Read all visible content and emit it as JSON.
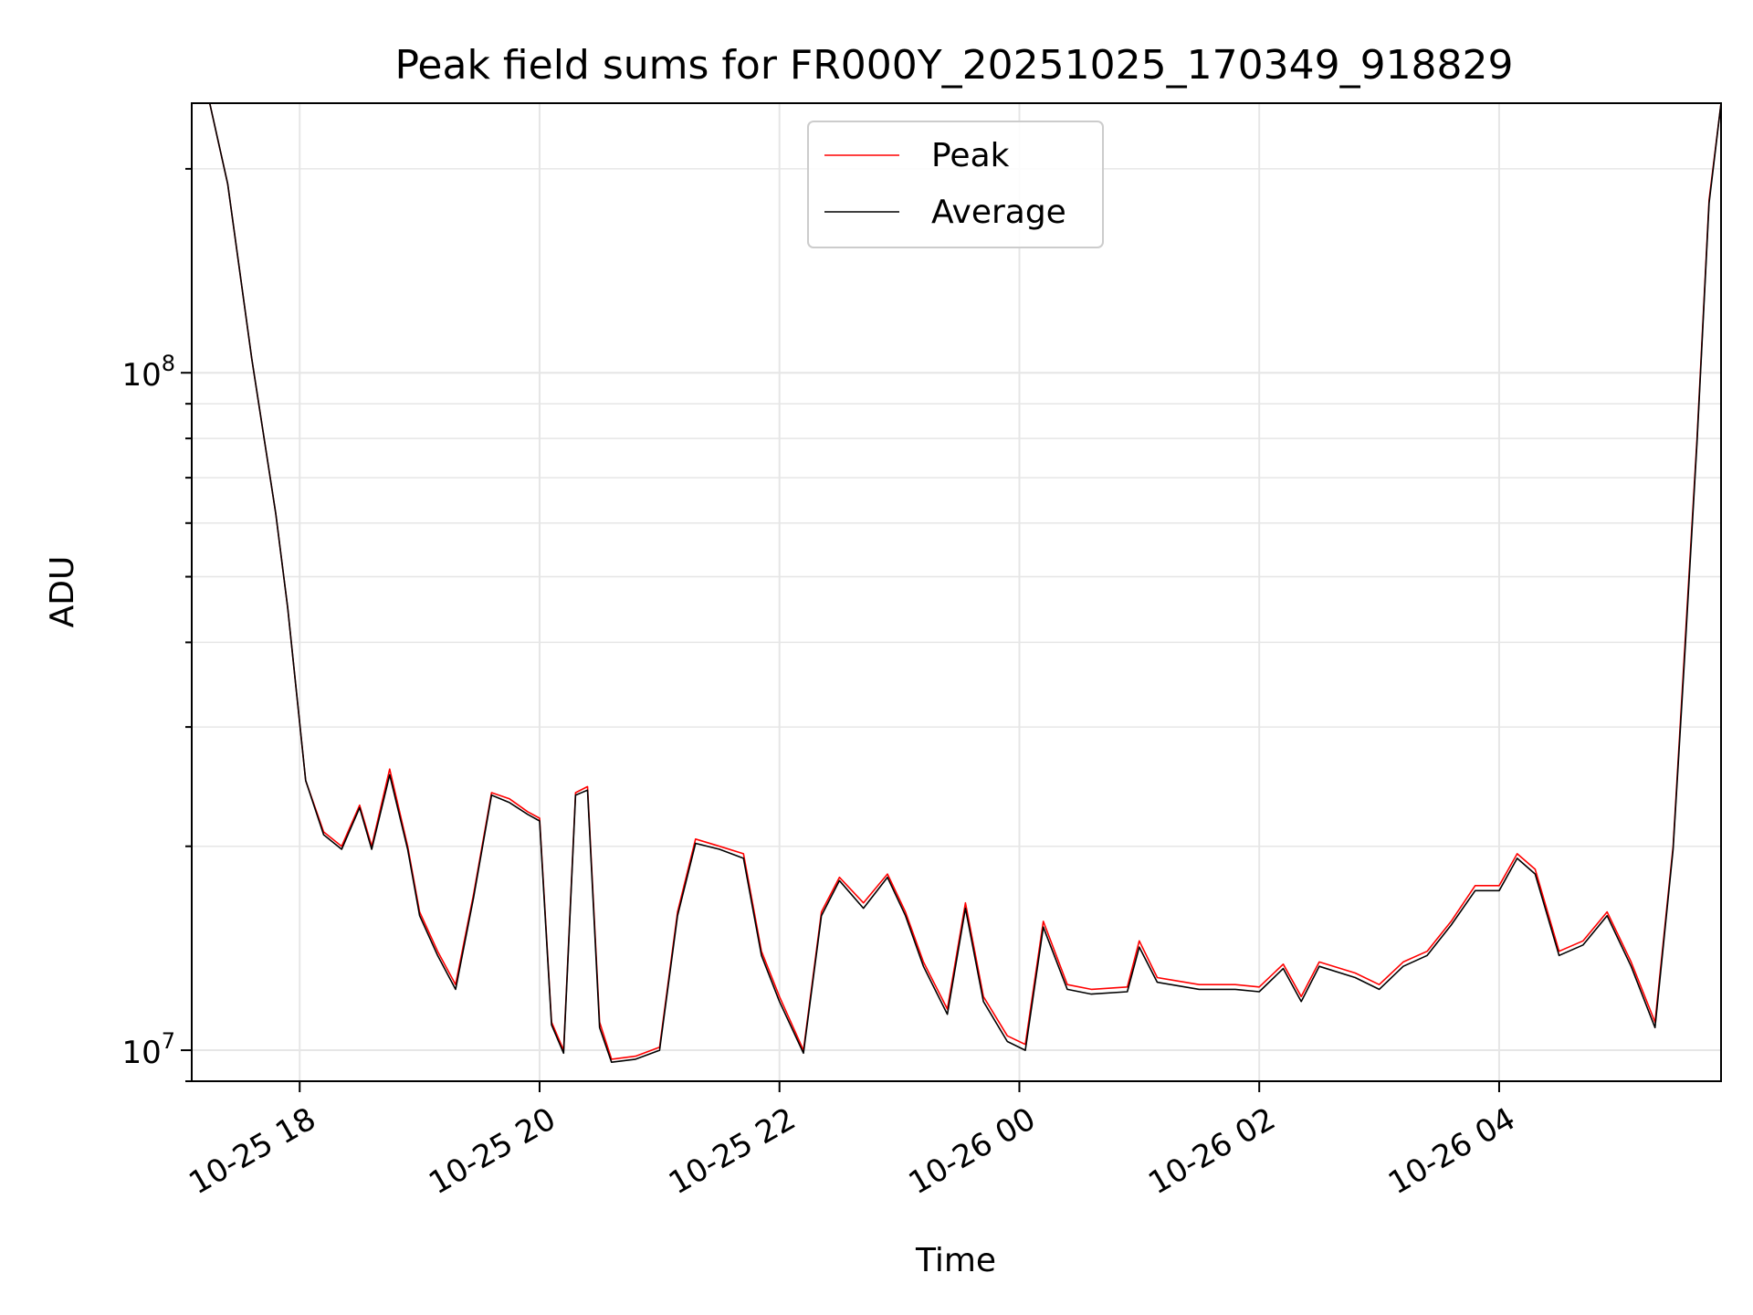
{
  "chart_data": {
    "type": "line",
    "title": "Peak field sums for FR000Y_20251025_170349_918829",
    "xlabel": "Time",
    "ylabel": "ADU",
    "yscale": "log",
    "ylim": [
      9000000,
      250000000
    ],
    "xlim_hours": [
      17.1,
      29.85
    ],
    "grid": true,
    "legend_position": "top-center",
    "x_ticks": [
      {
        "hour": 18,
        "label": "10-25 18"
      },
      {
        "hour": 20,
        "label": "10-25 20"
      },
      {
        "hour": 22,
        "label": "10-25 22"
      },
      {
        "hour": 24,
        "label": "10-26 00"
      },
      {
        "hour": 26,
        "label": "10-26 02"
      },
      {
        "hour": 28,
        "label": "10-26 04"
      }
    ],
    "y_major_ticks": [
      {
        "value": 10000000,
        "label_base": "10",
        "label_exp": "7"
      },
      {
        "value": 100000000,
        "label_base": "10",
        "label_exp": "8"
      }
    ],
    "series": [
      {
        "name": "Peak",
        "color": "#ff0000",
        "points_hour_adu": [
          [
            17.25,
            250000000
          ],
          [
            17.4,
            190000000
          ],
          [
            17.6,
            105000000
          ],
          [
            17.8,
            62000000
          ],
          [
            17.9,
            45000000
          ],
          [
            18.05,
            25000000
          ],
          [
            18.2,
            21000000
          ],
          [
            18.35,
            20000000
          ],
          [
            18.5,
            23000000
          ],
          [
            18.6,
            20000000
          ],
          [
            18.75,
            26000000
          ],
          [
            18.9,
            20000000
          ],
          [
            19.0,
            16000000
          ],
          [
            19.15,
            14000000
          ],
          [
            19.3,
            12500000
          ],
          [
            19.45,
            17000000
          ],
          [
            19.6,
            24000000
          ],
          [
            19.75,
            23500000
          ],
          [
            19.9,
            22500000
          ],
          [
            20.0,
            22000000
          ],
          [
            20.1,
            11000000
          ],
          [
            20.2,
            10000000
          ],
          [
            20.3,
            24000000
          ],
          [
            20.4,
            24500000
          ],
          [
            20.5,
            11000000
          ],
          [
            20.6,
            9700000
          ],
          [
            20.8,
            9800000
          ],
          [
            21.0,
            10100000
          ],
          [
            21.15,
            16000000
          ],
          [
            21.3,
            20500000
          ],
          [
            21.5,
            20000000
          ],
          [
            21.7,
            19500000
          ],
          [
            21.85,
            14000000
          ],
          [
            22.0,
            12000000
          ],
          [
            22.2,
            10000000
          ],
          [
            22.35,
            16000000
          ],
          [
            22.5,
            18000000
          ],
          [
            22.7,
            16500000
          ],
          [
            22.9,
            18200000
          ],
          [
            23.05,
            16000000
          ],
          [
            23.2,
            13500000
          ],
          [
            23.4,
            11500000
          ],
          [
            23.55,
            16500000
          ],
          [
            23.7,
            12000000
          ],
          [
            23.9,
            10500000
          ],
          [
            24.05,
            10200000
          ],
          [
            24.2,
            15500000
          ],
          [
            24.4,
            12500000
          ],
          [
            24.6,
            12300000
          ],
          [
            24.9,
            12400000
          ],
          [
            25.0,
            14500000
          ],
          [
            25.15,
            12800000
          ],
          [
            25.5,
            12500000
          ],
          [
            25.8,
            12500000
          ],
          [
            26.0,
            12400000
          ],
          [
            26.2,
            13400000
          ],
          [
            26.35,
            12000000
          ],
          [
            26.5,
            13500000
          ],
          [
            26.8,
            13000000
          ],
          [
            27.0,
            12500000
          ],
          [
            27.2,
            13500000
          ],
          [
            27.4,
            14000000
          ],
          [
            27.6,
            15500000
          ],
          [
            27.8,
            17500000
          ],
          [
            28.0,
            17500000
          ],
          [
            28.15,
            19500000
          ],
          [
            28.3,
            18500000
          ],
          [
            28.5,
            14000000
          ],
          [
            28.7,
            14500000
          ],
          [
            28.9,
            16000000
          ],
          [
            29.1,
            13500000
          ],
          [
            29.3,
            11000000
          ],
          [
            29.45,
            20000000
          ],
          [
            29.55,
            40000000
          ],
          [
            29.65,
            80000000
          ],
          [
            29.75,
            180000000
          ],
          [
            29.85,
            250000000
          ]
        ]
      },
      {
        "name": "Average",
        "color": "#000000",
        "points_hour_adu": [
          [
            17.25,
            250000000
          ],
          [
            17.4,
            190000000
          ],
          [
            17.6,
            105000000
          ],
          [
            17.8,
            62000000
          ],
          [
            17.9,
            45000000
          ],
          [
            18.05,
            25000000
          ],
          [
            18.2,
            20800000
          ],
          [
            18.35,
            19800000
          ],
          [
            18.5,
            22800000
          ],
          [
            18.6,
            19800000
          ],
          [
            18.75,
            25500000
          ],
          [
            18.9,
            19800000
          ],
          [
            19.0,
            15800000
          ],
          [
            19.15,
            13800000
          ],
          [
            19.3,
            12300000
          ],
          [
            19.45,
            16800000
          ],
          [
            19.6,
            23800000
          ],
          [
            19.75,
            23200000
          ],
          [
            19.9,
            22300000
          ],
          [
            20.0,
            21800000
          ],
          [
            20.1,
            10900000
          ],
          [
            20.2,
            9900000
          ],
          [
            20.3,
            23800000
          ],
          [
            20.4,
            24200000
          ],
          [
            20.5,
            10800000
          ],
          [
            20.6,
            9600000
          ],
          [
            20.8,
            9700000
          ],
          [
            21.0,
            10000000
          ],
          [
            21.15,
            15800000
          ],
          [
            21.3,
            20200000
          ],
          [
            21.5,
            19800000
          ],
          [
            21.7,
            19200000
          ],
          [
            21.85,
            13800000
          ],
          [
            22.0,
            11800000
          ],
          [
            22.2,
            9900000
          ],
          [
            22.35,
            15800000
          ],
          [
            22.5,
            17800000
          ],
          [
            22.7,
            16200000
          ],
          [
            22.9,
            18000000
          ],
          [
            23.05,
            15800000
          ],
          [
            23.2,
            13300000
          ],
          [
            23.4,
            11300000
          ],
          [
            23.55,
            16200000
          ],
          [
            23.7,
            11800000
          ],
          [
            23.9,
            10300000
          ],
          [
            24.05,
            10000000
          ],
          [
            24.2,
            15200000
          ],
          [
            24.4,
            12300000
          ],
          [
            24.6,
            12100000
          ],
          [
            24.9,
            12200000
          ],
          [
            25.0,
            14200000
          ],
          [
            25.15,
            12600000
          ],
          [
            25.5,
            12300000
          ],
          [
            25.8,
            12300000
          ],
          [
            26.0,
            12200000
          ],
          [
            26.2,
            13200000
          ],
          [
            26.35,
            11800000
          ],
          [
            26.5,
            13300000
          ],
          [
            26.8,
            12800000
          ],
          [
            27.0,
            12300000
          ],
          [
            27.2,
            13300000
          ],
          [
            27.4,
            13800000
          ],
          [
            27.6,
            15300000
          ],
          [
            27.8,
            17200000
          ],
          [
            28.0,
            17200000
          ],
          [
            28.15,
            19200000
          ],
          [
            28.3,
            18200000
          ],
          [
            28.5,
            13800000
          ],
          [
            28.7,
            14300000
          ],
          [
            28.9,
            15800000
          ],
          [
            29.1,
            13300000
          ],
          [
            29.3,
            10800000
          ],
          [
            29.45,
            19800000
          ],
          [
            29.55,
            39000000
          ],
          [
            29.65,
            79000000
          ],
          [
            29.75,
            178000000
          ],
          [
            29.85,
            250000000
          ]
        ]
      }
    ]
  }
}
